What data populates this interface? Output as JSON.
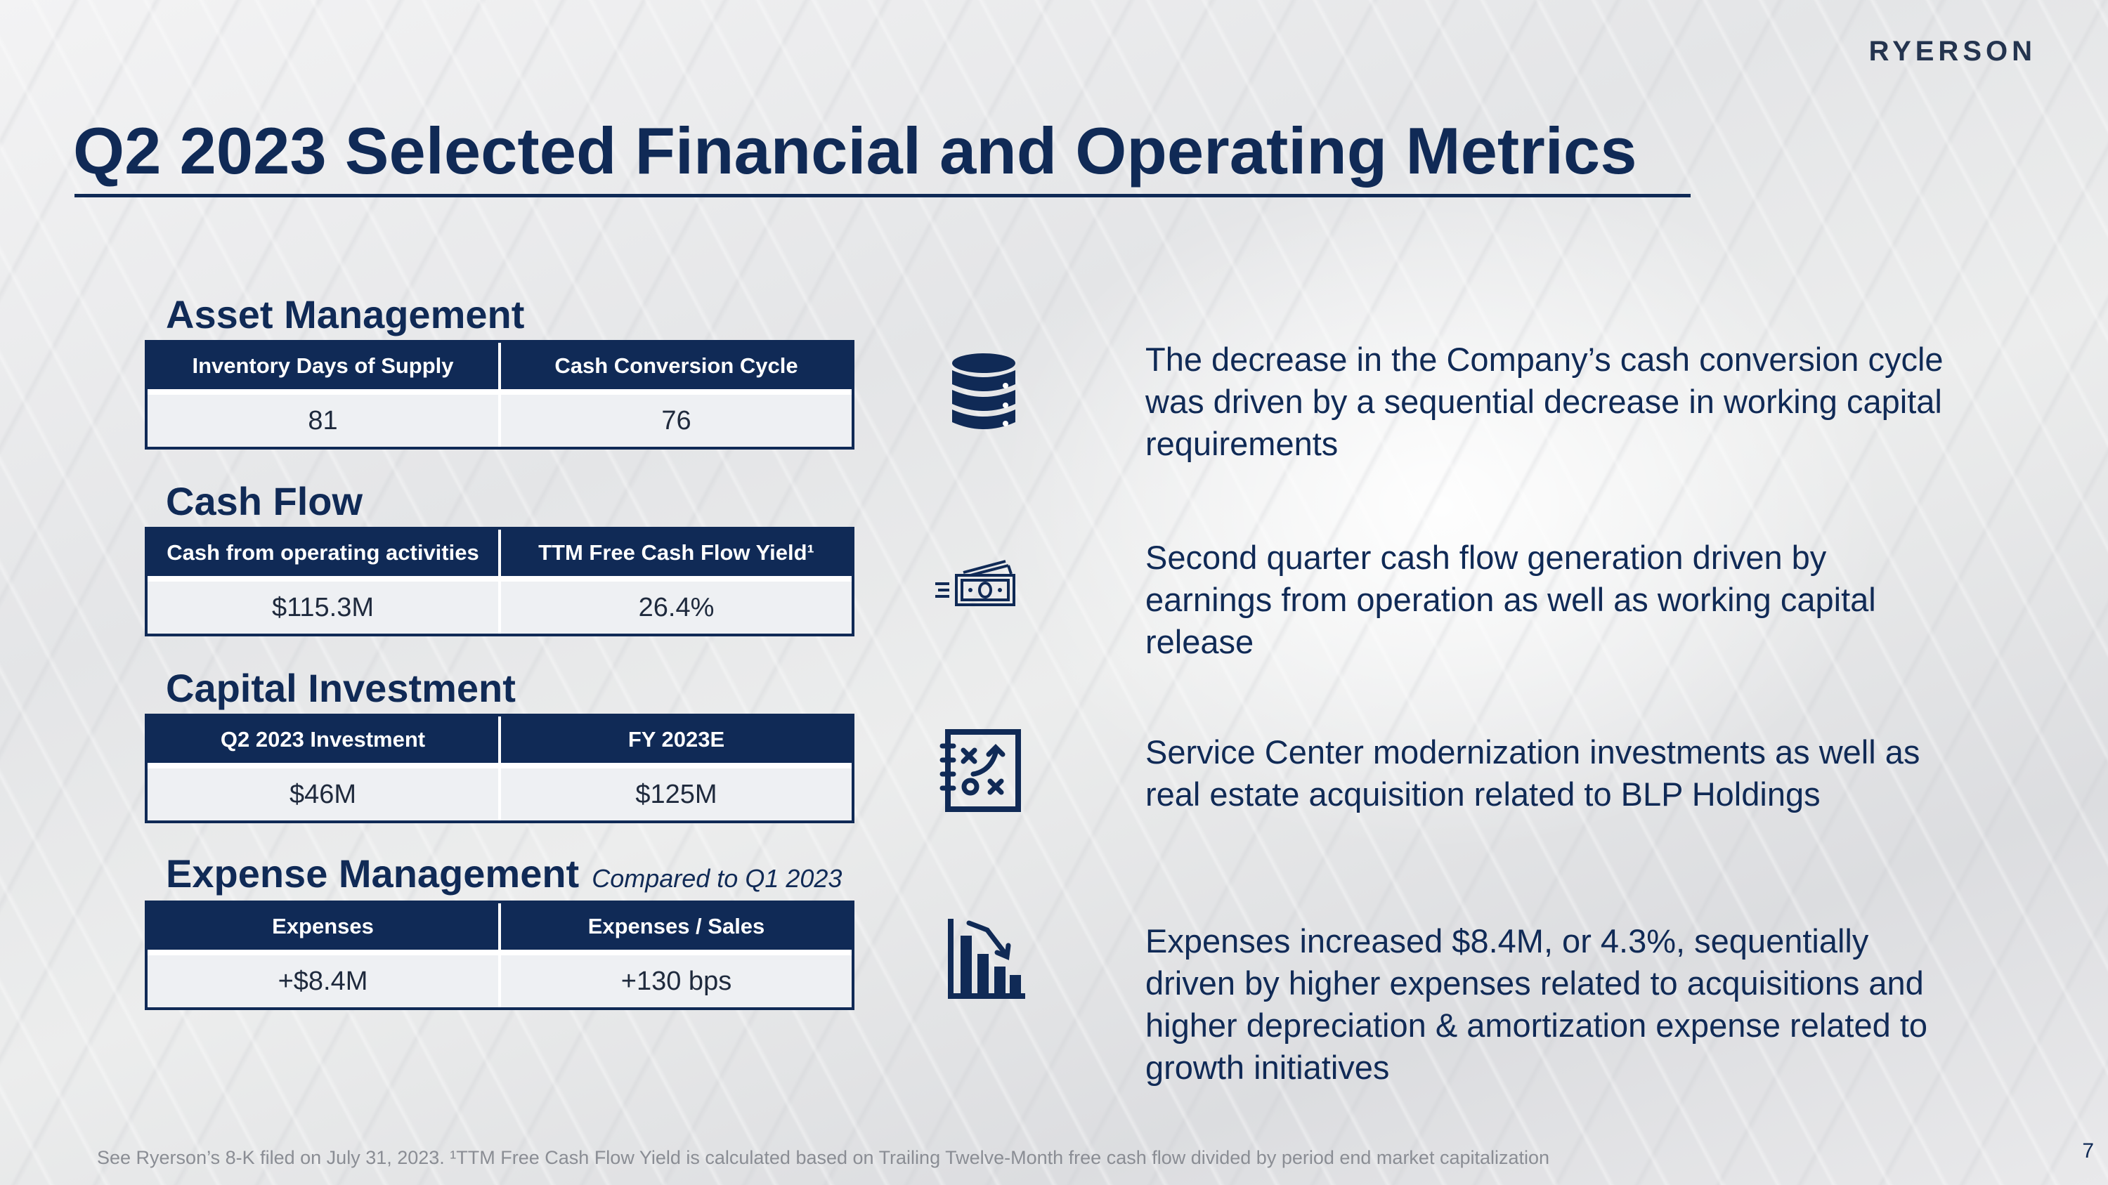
{
  "logo": "RYERSON",
  "title": "Q2 2023 Selected Financial and Operating Metrics",
  "sections": [
    {
      "heading": "Asset Management",
      "note": "",
      "columns": [
        "Inventory Days of Supply",
        "Cash Conversion Cycle"
      ],
      "values": [
        "81",
        "76"
      ],
      "icon": "database-stack-icon",
      "description": "The decrease in the Company’s cash conversion cycle was driven by a sequential decrease in working capital requirements"
    },
    {
      "heading": "Cash Flow",
      "note": "",
      "columns": [
        "Cash from operating activities",
        "TTM Free Cash Flow Yield¹"
      ],
      "values": [
        "$115.3M",
        "26.4%"
      ],
      "icon": "cash-money-icon",
      "description": "Second quarter cash flow generation driven by earnings from operation as well as working capital release"
    },
    {
      "heading": "Capital Investment",
      "note": "",
      "columns": [
        "Q2 2023 Investment",
        "FY 2023E"
      ],
      "values": [
        "$46M",
        "$125M"
      ],
      "icon": "strategy-plan-icon",
      "description": "Service Center modernization investments as well as real estate acquisition related to BLP Holdings"
    },
    {
      "heading": "Expense Management",
      "note": "Compared to Q1 2023",
      "columns": [
        "Expenses",
        "Expenses / Sales"
      ],
      "values": [
        "+$8.4M",
        "+130 bps"
      ],
      "icon": "declining-bar-chart-icon",
      "description": "Expenses increased $8.4M, or 4.3%, sequentially driven by higher expenses related to acquisitions and higher depreciation & amortization expense related to growth initiatives"
    }
  ],
  "footnote": "See Ryerson’s 8-K filed on July 31, 2023. ¹TTM Free Cash Flow Yield is calculated based on Trailing Twelve-Month free cash flow divided by period end market capitalization",
  "page_number": "7",
  "colors": {
    "navy": "#102a56",
    "text_gray": "#8a8d94"
  }
}
